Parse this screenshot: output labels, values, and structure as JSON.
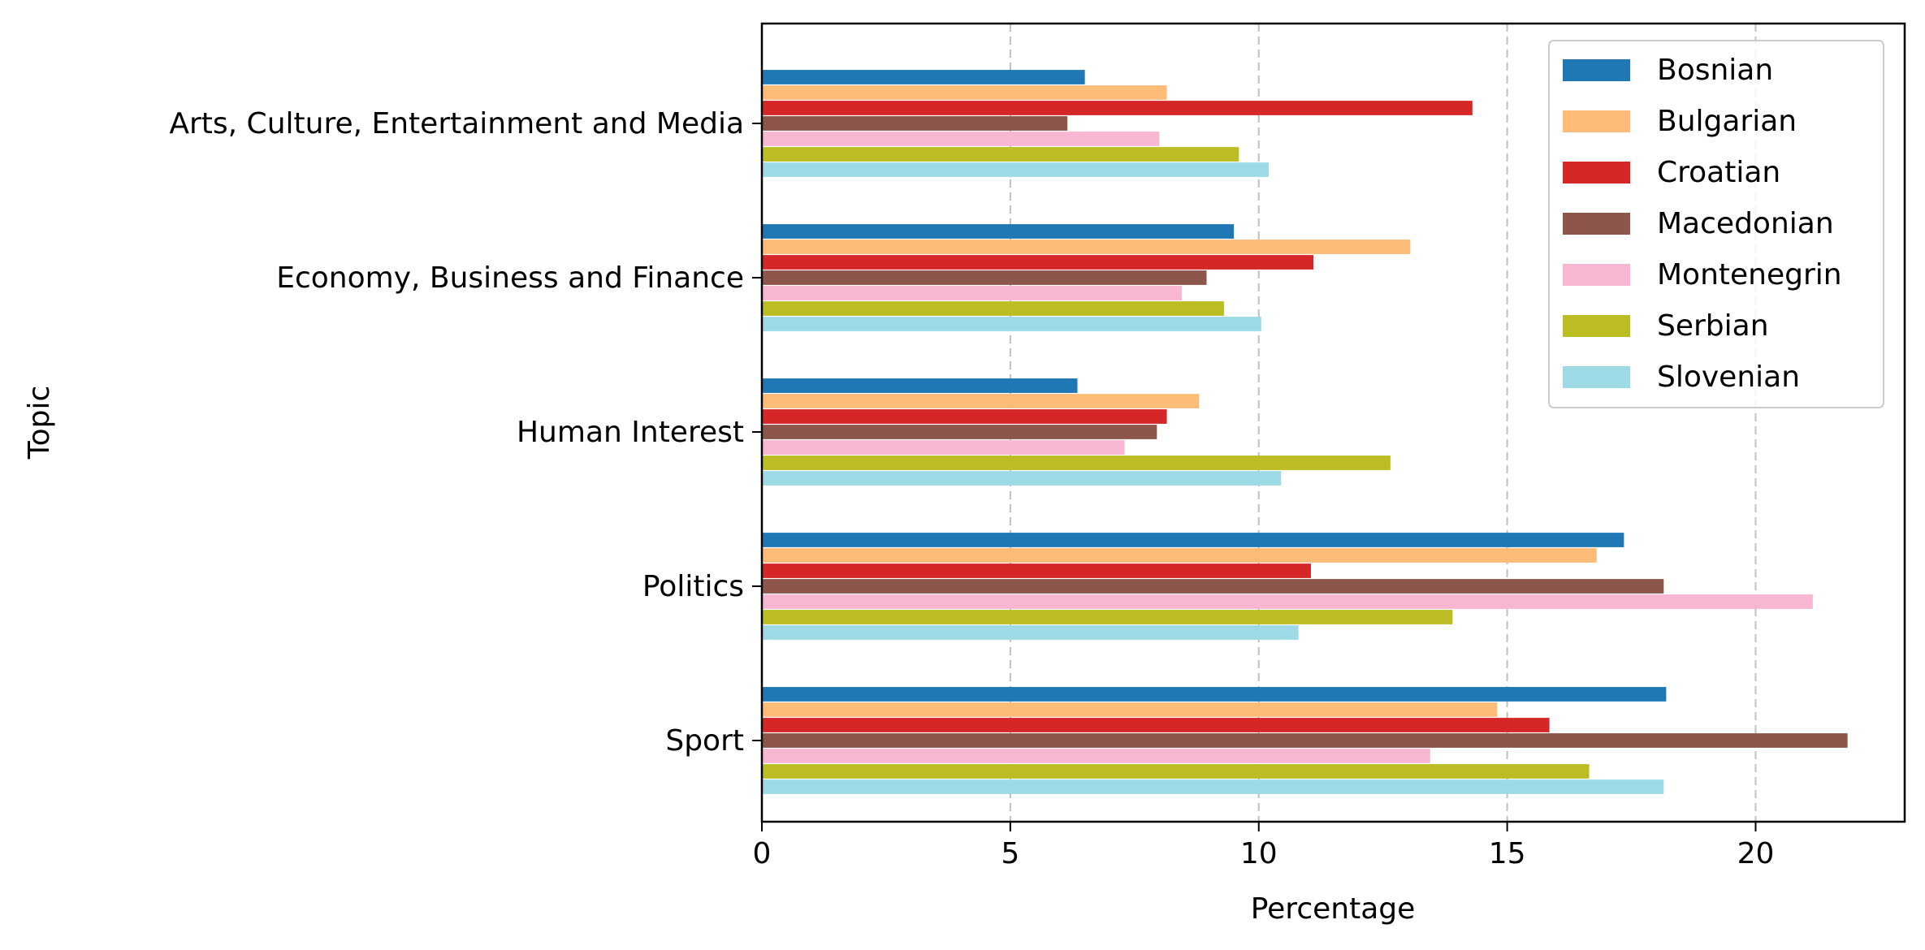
{
  "chart_data": {
    "type": "bar",
    "orientation": "horizontal",
    "xlabel": "Percentage",
    "ylabel": "Topic",
    "xlim": [
      0,
      23
    ],
    "x_ticks": [
      0,
      5,
      10,
      15,
      20
    ],
    "x_grid": true,
    "legend_position": "top-right",
    "categories": [
      "Arts, Culture, Entertainment and Media",
      "Economy, Business and Finance",
      "Human Interest",
      "Politics",
      "Sport"
    ],
    "series": [
      {
        "name": "Bosnian",
        "color": "#1f77b4",
        "values": [
          6.5,
          9.5,
          6.35,
          17.35,
          18.2
        ]
      },
      {
        "name": "Bulgarian",
        "color": "#ffbb78",
        "values": [
          8.15,
          13.05,
          8.8,
          16.8,
          14.8
        ]
      },
      {
        "name": "Croatian",
        "color": "#d62728",
        "values": [
          14.3,
          11.1,
          8.15,
          11.05,
          15.85
        ]
      },
      {
        "name": "Macedonian",
        "color": "#8c564b",
        "values": [
          6.15,
          8.95,
          7.95,
          18.15,
          21.85
        ]
      },
      {
        "name": "Montenegrin",
        "color": "#f7b6d2",
        "values": [
          8.0,
          8.45,
          7.3,
          21.15,
          13.45
        ]
      },
      {
        "name": "Serbian",
        "color": "#bcbd22",
        "values": [
          9.6,
          9.3,
          12.65,
          13.9,
          16.65
        ]
      },
      {
        "name": "Slovenian",
        "color": "#9edae5",
        "values": [
          10.2,
          10.05,
          10.45,
          10.8,
          18.15
        ]
      }
    ]
  }
}
